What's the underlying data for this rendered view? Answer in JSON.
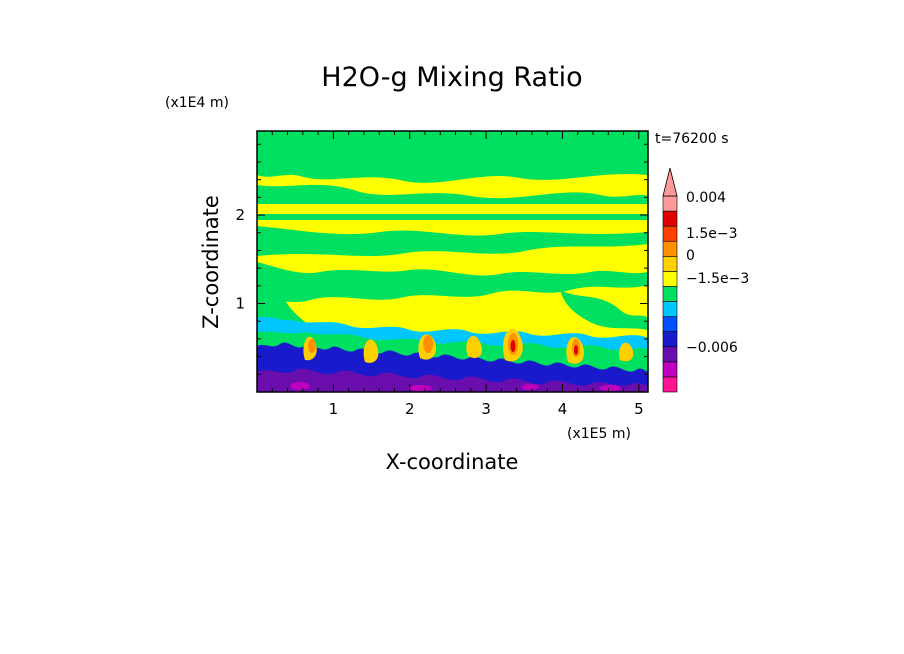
{
  "chart_data": {
    "type": "heatmap",
    "title": "H2O-g Mixing Ratio",
    "xlabel": "X-coordinate",
    "ylabel": "Z-coordinate",
    "x_unit": "(x1E5 m)",
    "y_unit": "(x1E4 m)",
    "time_label": "t=76200 s",
    "xlim": [
      0,
      5.12
    ],
    "ylim": [
      0,
      2.95
    ],
    "x_ticks": [
      {
        "value": 1,
        "label": "1"
      },
      {
        "value": 2,
        "label": "2"
      },
      {
        "value": 3,
        "label": "3"
      },
      {
        "value": 4,
        "label": "4"
      },
      {
        "value": 5,
        "label": "5"
      }
    ],
    "y_ticks": [
      {
        "value": 1,
        "label": "1"
      },
      {
        "value": 2,
        "label": "2"
      }
    ],
    "colorbar": {
      "colors": [
        "#ff1493",
        "#c000c0",
        "#6a0dad",
        "#1a1acd",
        "#0050ff",
        "#00c8ff",
        "#00e060",
        "#ffff00",
        "#ffd000",
        "#ff9000",
        "#ff4000",
        "#e00000",
        "#ff9a9a"
      ],
      "labels": [
        "−0.006",
        "−1.5e−3",
        "0",
        "1.5e−3",
        "0.004"
      ],
      "extend": "max"
    },
    "regions": [
      {
        "z_range": [
          2.1,
          2.95
        ],
        "dominant": "mixed yellow/green"
      },
      {
        "z_range": [
          1.9,
          2.1
        ],
        "dominant": "yellow band"
      },
      {
        "z_range": [
          0.8,
          1.9
        ],
        "dominant": "yellow with green"
      },
      {
        "z_range": [
          0.0,
          0.8
        ],
        "dominant": "blue/purple with orange plumes"
      }
    ]
  }
}
